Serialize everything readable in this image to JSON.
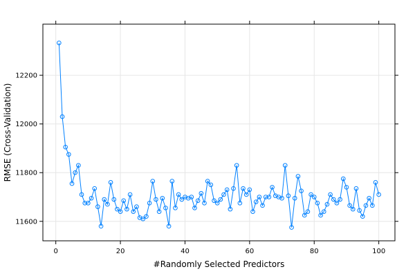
{
  "chart_data": {
    "type": "line",
    "xlabel": "#Randomly Selected Predictors",
    "ylabel": "RMSE (Cross-Validation)",
    "xlim": [
      -4,
      105
    ],
    "ylim": [
      11520,
      12410
    ],
    "xticks": [
      0,
      20,
      40,
      60,
      80,
      100
    ],
    "yticks": [
      11600,
      11800,
      12000,
      12200
    ],
    "xtick_labels": [
      "0",
      "20",
      "40",
      "60",
      "80",
      "100"
    ],
    "ytick_labels": [
      "11600",
      "11800",
      "12000",
      "12200"
    ],
    "grid": true,
    "series_color": "#0080ff",
    "series": [
      {
        "x": [
          1,
          2,
          3,
          4,
          5,
          6,
          7,
          8,
          9,
          10,
          11,
          12,
          13,
          14,
          15,
          16,
          17,
          18,
          19,
          20,
          21,
          22,
          23,
          24,
          25,
          26,
          27,
          28,
          29,
          30,
          31,
          32,
          33,
          34,
          35,
          36,
          37,
          38,
          39,
          40,
          41,
          42,
          43,
          44,
          45,
          46,
          47,
          48,
          49,
          50,
          51,
          52,
          53,
          54,
          55,
          56,
          57,
          58,
          59,
          60,
          61,
          62,
          63,
          64,
          65,
          66,
          67,
          68,
          69,
          70,
          71,
          72,
          73,
          74,
          75,
          76,
          77,
          78,
          79,
          80,
          81,
          82,
          83,
          84,
          85,
          86,
          87,
          88,
          89,
          90,
          91,
          92,
          93,
          94,
          95,
          96,
          97,
          98,
          99,
          100
        ],
        "values": [
          12333,
          12030,
          11905,
          11875,
          11755,
          11800,
          11830,
          11710,
          11675,
          11675,
          11695,
          11735,
          11660,
          11580,
          11690,
          11670,
          11760,
          11690,
          11650,
          11640,
          11685,
          11650,
          11710,
          11640,
          11660,
          11615,
          11610,
          11620,
          11675,
          11765,
          11690,
          11640,
          11695,
          11655,
          11580,
          11765,
          11655,
          11710,
          11690,
          11700,
          11695,
          11700,
          11655,
          11685,
          11715,
          11675,
          11765,
          11750,
          11685,
          11675,
          11690,
          11710,
          11730,
          11650,
          11735,
          11830,
          11675,
          11735,
          11710,
          11730,
          11640,
          11680,
          11700,
          11665,
          11700,
          11700,
          11740,
          11705,
          11700,
          11695,
          11830,
          11705,
          11575,
          11695,
          11785,
          11725,
          11625,
          11640,
          11710,
          11700,
          11675,
          11625,
          11640,
          11670,
          11710,
          11690,
          11675,
          11690,
          11775,
          11740,
          11665,
          11650,
          11735,
          11645,
          11620,
          11665,
          11695,
          11665,
          11760,
          11710
        ]
      }
    ]
  }
}
